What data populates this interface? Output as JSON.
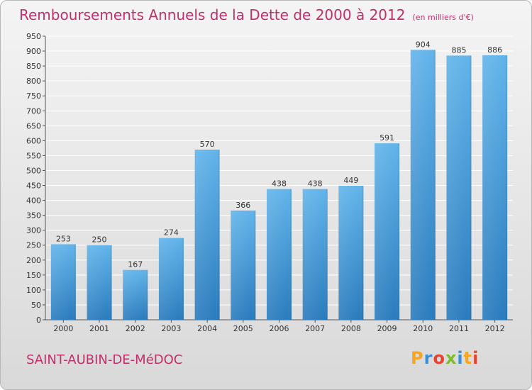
{
  "header": {
    "title": "Remboursements Annuels de la Dette de 2000 à 2012",
    "unit": "(en milliers d'€)"
  },
  "footer": {
    "commune": "SAINT-AUBIN-DE-MéDOC",
    "brand": [
      "P",
      "r",
      "o",
      "x",
      "i",
      "t",
      "i"
    ],
    "brand_colors": [
      "#f5a623",
      "#3a8fd6",
      "#e8432e",
      "#7dbb2f",
      "#3a8fd6",
      "#f5a623",
      "#e8432e"
    ]
  },
  "colors": {
    "bar_top": "#62b4ea",
    "bar_bottom": "#2a7bbd",
    "grid": "#ffffff",
    "title": "#c0306b"
  },
  "chart_data": {
    "type": "bar",
    "categories": [
      "2000",
      "2001",
      "2002",
      "2003",
      "2004",
      "2005",
      "2006",
      "2007",
      "2008",
      "2009",
      "2010",
      "2011",
      "2012"
    ],
    "values": [
      253,
      250,
      167,
      274,
      570,
      366,
      438,
      438,
      449,
      591,
      904,
      885,
      886
    ],
    "value_labels": [
      "253",
      "250",
      "167",
      "274",
      "570",
      "366",
      "438",
      "438",
      "449",
      "591",
      "904",
      "885",
      "886"
    ],
    "yticks": [
      "0",
      "50",
      "100",
      "150",
      "200",
      "250",
      "300",
      "350",
      "400",
      "450",
      "500",
      "550",
      "600",
      "650",
      "700",
      "750",
      "800",
      "850",
      "900",
      "950"
    ],
    "ylim": [
      0,
      950
    ],
    "grid": true,
    "title": "Remboursements Annuels de la Dette de 2000 à 2012",
    "xlabel": "",
    "ylabel": ""
  }
}
